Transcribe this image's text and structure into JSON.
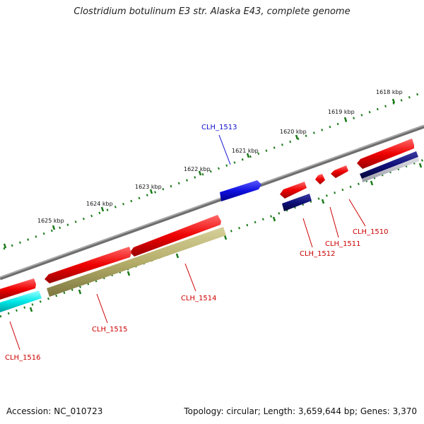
{
  "title": "Clostridium botulinum E3 str. Alaska E43, complete genome",
  "footer": {
    "accession": "Accession: NC_010723",
    "summary": "Topology: circular; Length: 3,659,644 bp; Genes: 3,370"
  },
  "kbp_ticks": [
    "1618 kbp",
    "1619 kbp",
    "1620 kbp",
    "1621 kbp",
    "1622 kbp",
    "1623 kbp",
    "1624 kbp",
    "1625 kbp"
  ],
  "genes": [
    {
      "id": "CLH_1510",
      "strand": "minus",
      "color": "#e00000"
    },
    {
      "id": "CLH_1511",
      "strand": "minus",
      "color": "#e00000"
    },
    {
      "id": "CLH_1512",
      "strand": "minus",
      "color": "#e00000"
    },
    {
      "id": "CLH_1513",
      "strand": "plus",
      "color": "#1010e0"
    },
    {
      "id": "CLH_1514",
      "strand": "minus",
      "color": "#e00000"
    },
    {
      "id": "CLH_1515",
      "strand": "minus",
      "color": "#e00000"
    },
    {
      "id": "CLH_1516",
      "strand": "minus",
      "color": "#e00000"
    }
  ],
  "colors": {
    "backbone": "#8a8a8a",
    "gene_forward": "#1010e0",
    "gene_reverse": "#e00000",
    "feature_navy": "#10107a",
    "feature_olive": "#b5ae6a",
    "feature_cyan": "#00e8e8",
    "tick_green": "#1a7a1a"
  }
}
